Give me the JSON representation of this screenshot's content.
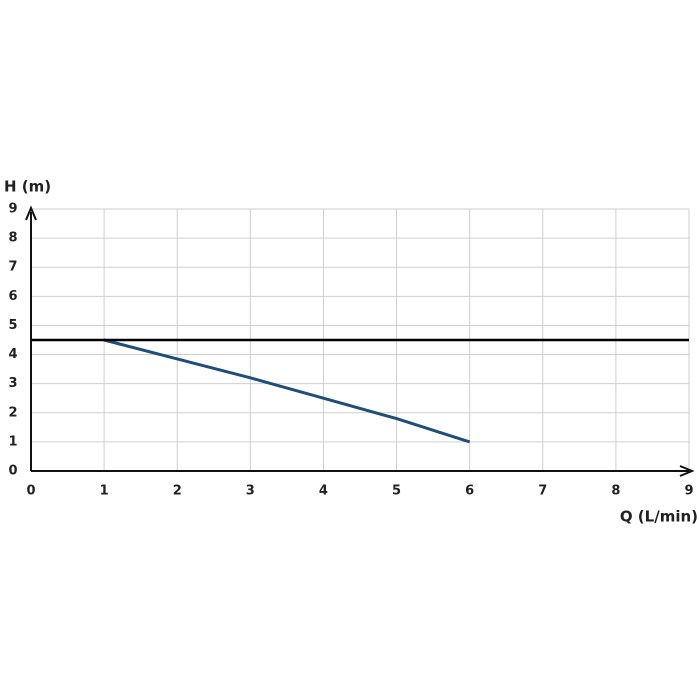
{
  "chart_data": {
    "type": "line",
    "x_label": "Q (L/min)",
    "y_label": "H (m)",
    "xlim": [
      0,
      9
    ],
    "ylim": [
      0,
      9
    ],
    "xticks": [
      0,
      1,
      2,
      3,
      4,
      5,
      6,
      7,
      8,
      9
    ],
    "yticks": [
      0,
      1,
      2,
      3,
      4,
      5,
      6,
      7,
      8,
      9
    ],
    "grid": true,
    "series": [
      {
        "color": "#1f4e79",
        "x": [
          1,
          2,
          3,
          4,
          5,
          6
        ],
        "values": [
          4.5,
          3.85,
          3.2,
          2.5,
          1.8,
          1.0
        ]
      },
      {
        "color": "#000000",
        "x": [
          0,
          9
        ],
        "values": [
          4.5,
          4.5
        ]
      }
    ]
  }
}
